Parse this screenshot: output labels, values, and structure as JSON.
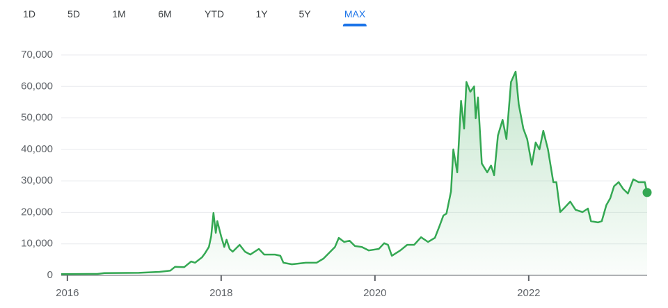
{
  "range_tabs": [
    "1D",
    "5D",
    "1M",
    "6M",
    "YTD",
    "1Y",
    "5Y",
    "MAX"
  ],
  "selected_tab": "MAX",
  "chart_data": {
    "type": "line",
    "color": "#34a853",
    "area": true,
    "grid": true,
    "end_marker": true,
    "xlim": [
      2015.92,
      2023.54
    ],
    "xticks": [
      2016,
      2018,
      2020,
      2022
    ],
    "ylim": [
      0,
      70000
    ],
    "yticks": [
      0,
      {
        "value": 10000,
        "label": "10,000"
      },
      {
        "value": 20000,
        "label": "20,000"
      },
      {
        "value": 30000,
        "label": "30,000"
      },
      {
        "value": 40000,
        "label": "40,000"
      },
      {
        "value": 50000,
        "label": "50,000"
      },
      {
        "value": 60000,
        "label": "60,000"
      },
      {
        "value": 70000,
        "label": "70,000"
      }
    ],
    "x": [
      2015.92,
      2016.39,
      2016.48,
      2016.93,
      2017.2,
      2017.34,
      2017.4,
      2017.52,
      2017.61,
      2017.66,
      2017.75,
      2017.79,
      2017.84,
      2017.87,
      2017.9,
      2017.93,
      2017.95,
      2018.0,
      2018.04,
      2018.07,
      2018.11,
      2018.15,
      2018.24,
      2018.31,
      2018.38,
      2018.49,
      2018.56,
      2018.7,
      2018.77,
      2018.81,
      2018.92,
      2019.1,
      2019.24,
      2019.33,
      2019.42,
      2019.48,
      2019.53,
      2019.6,
      2019.67,
      2019.74,
      2019.83,
      2019.92,
      2020.05,
      2020.12,
      2020.17,
      2020.22,
      2020.33,
      2020.42,
      2020.51,
      2020.6,
      2020.69,
      2020.78,
      2020.84,
      2020.89,
      2020.93,
      2020.99,
      2021.02,
      2021.07,
      2021.12,
      2021.16,
      2021.19,
      2021.24,
      2021.29,
      2021.31,
      2021.34,
      2021.39,
      2021.46,
      2021.51,
      2021.55,
      2021.6,
      2021.66,
      2021.71,
      2021.77,
      2021.83,
      2021.87,
      2021.93,
      2021.98,
      2022.04,
      2022.09,
      2022.14,
      2022.19,
      2022.25,
      2022.32,
      2022.36,
      2022.41,
      2022.47,
      2022.54,
      2022.61,
      2022.7,
      2022.77,
      2022.81,
      2022.9,
      2022.95,
      2023.01,
      2023.06,
      2023.11,
      2023.17,
      2023.23,
      2023.29,
      2023.36,
      2023.43,
      2023.51,
      2023.54
    ],
    "values": [
      400,
      450,
      700,
      800,
      1100,
      1500,
      2700,
      2600,
      4400,
      4000,
      5700,
      7000,
      9000,
      12400,
      19800,
      13500,
      17200,
      12400,
      9000,
      11300,
      8400,
      7500,
      9700,
      7500,
      6600,
      8400,
      6600,
      6600,
      6200,
      4000,
      3500,
      4000,
      4000,
      5300,
      7500,
      9000,
      11900,
      10600,
      11000,
      9300,
      9000,
      7900,
      8400,
      10200,
      9700,
      6200,
      7900,
      9700,
      9700,
      12100,
      10600,
      11900,
      15700,
      19000,
      19600,
      26700,
      40000,
      32700,
      55400,
      46600,
      61400,
      58300,
      60000,
      49900,
      56500,
      35500,
      32700,
      34900,
      31800,
      44400,
      49400,
      43300,
      61400,
      64700,
      54300,
      46600,
      43300,
      35100,
      42200,
      40000,
      45900,
      40000,
      29600,
      29600,
      20100,
      21600,
      23400,
      20800,
      20100,
      21200,
      17200,
      16800,
      17200,
      22300,
      24500,
      28300,
      29600,
      27400,
      26000,
      30500,
      29600,
      29600,
      26300
    ]
  }
}
